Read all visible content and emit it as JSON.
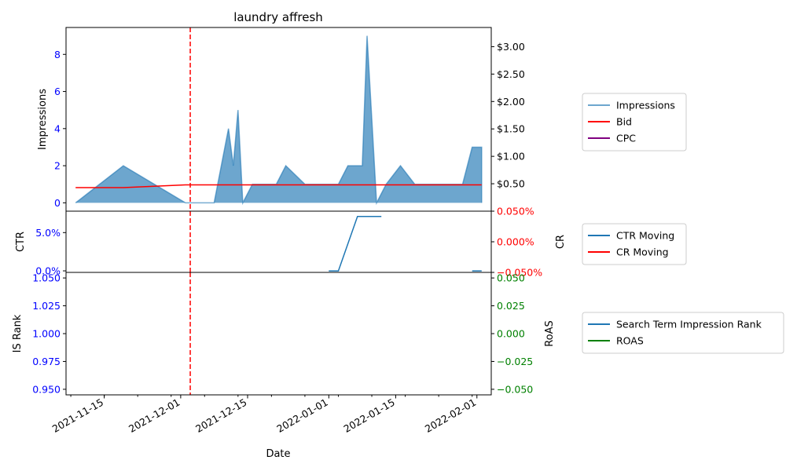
{
  "chart_data": {
    "title": "laundry affresh",
    "xlabel": "Date",
    "x_ticks": [
      "2021-11-15",
      "2021-12-01",
      "2021-12-15",
      "2022-01-01",
      "2022-01-15",
      "2022-02-01"
    ],
    "x_range": [
      "2021-11-07",
      "2022-02-04"
    ],
    "vline_date": "2021-12-03",
    "colors": {
      "impressions": "#1f77b4",
      "bid": "#ff0000",
      "cpc": "#800080",
      "ctr": "#1f77b4",
      "cr": "#ff0000",
      "is_rank": "#1f77b4",
      "roas": "#008000",
      "left_ticks": "#0000ff",
      "vline": "#ff0000"
    },
    "panels": [
      {
        "type": "area+line",
        "left_label": "Impressions",
        "right_label": "",
        "left_ticks": [
          "0",
          "2",
          "4",
          "6",
          "8"
        ],
        "left_range": [
          -0.45,
          9.45
        ],
        "right_ticks": [
          "$0.50",
          "$1.00",
          "$1.50",
          "$2.00",
          "$2.50",
          "$3.00"
        ],
        "right_range": [
          0,
          3.35
        ],
        "series": [
          {
            "name": "Impressions",
            "axis": "left",
            "points": [
              [
                "2021-11-09",
                0
              ],
              [
                "2021-11-19",
                2
              ],
              [
                "2021-12-02",
                0
              ],
              [
                "2021-12-08",
                0
              ],
              [
                "2021-12-11",
                4
              ],
              [
                "2021-12-12",
                2
              ],
              [
                "2021-12-13",
                5
              ],
              [
                "2021-12-14",
                0
              ],
              [
                "2021-12-16",
                1
              ],
              [
                "2021-12-21",
                1
              ],
              [
                "2021-12-23",
                2
              ],
              [
                "2021-12-27",
                1
              ],
              [
                "2022-01-03",
                1
              ],
              [
                "2022-01-05",
                2
              ],
              [
                "2022-01-08",
                2
              ],
              [
                "2022-01-09",
                9
              ],
              [
                "2022-01-11",
                0
              ],
              [
                "2022-01-13",
                1
              ],
              [
                "2022-01-16",
                2
              ],
              [
                "2022-01-19",
                1
              ],
              [
                "2022-01-29",
                1
              ],
              [
                "2022-01-31",
                3
              ],
              [
                "2022-02-02",
                3
              ],
              [
                "2022-02-02",
                0
              ]
            ]
          },
          {
            "name": "Bid",
            "axis": "right",
            "points": [
              [
                "2021-11-09",
                0.43
              ],
              [
                "2021-11-19",
                0.43
              ],
              [
                "2021-12-02",
                0.48
              ],
              [
                "2022-02-02",
                0.48
              ]
            ]
          },
          {
            "name": "CPC",
            "axis": "right",
            "points": []
          }
        ],
        "legend": [
          "Impressions",
          "Bid",
          "CPC"
        ]
      },
      {
        "type": "line",
        "left_label": "CTR",
        "right_label": "CR",
        "left_ticks": [
          "0.0%",
          "5.0%"
        ],
        "left_range": [
          -0.2,
          7.8
        ],
        "right_ticks": [
          "−0.050%",
          "0.000%",
          "0.050%"
        ],
        "right_range": [
          -0.05,
          0.05
        ],
        "series": [
          {
            "name": "CTR Moving",
            "axis": "left",
            "segments": [
              [
                [
                  "2022-01-01",
                  0
                ],
                [
                  "2022-01-03",
                  0
                ],
                [
                  "2022-01-07",
                  7.1
                ],
                [
                  "2022-01-12",
                  7.1
                ]
              ],
              [
                [
                  "2022-01-31",
                  0
                ],
                [
                  "2022-02-02",
                  0
                ]
              ]
            ]
          },
          {
            "name": "CR Moving",
            "axis": "right",
            "segments": []
          }
        ],
        "legend": [
          "CTR Moving",
          "CR Moving"
        ]
      },
      {
        "type": "line",
        "left_label": "IS Rank",
        "right_label": "RoAS",
        "left_ticks": [
          "0.950",
          "0.975",
          "1.000",
          "1.025",
          "1.050"
        ],
        "left_range": [
          0.945,
          1.055
        ],
        "right_ticks": [
          "−0.050",
          "−0.025",
          "0.000",
          "0.025",
          "0.050"
        ],
        "right_range": [
          -0.055,
          0.055
        ],
        "series": [
          {
            "name": "Search Term Impression Rank",
            "axis": "left",
            "segments": []
          },
          {
            "name": "ROAS",
            "axis": "right",
            "segments": []
          }
        ],
        "legend": [
          "Search Term Impression Rank",
          "ROAS"
        ]
      }
    ]
  }
}
